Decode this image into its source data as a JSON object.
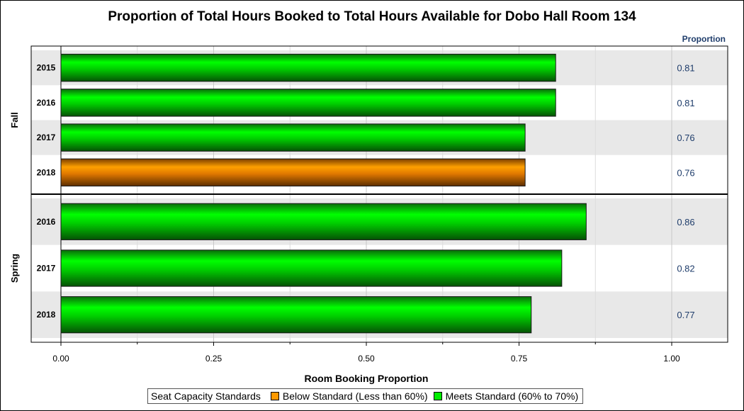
{
  "chart_data": {
    "type": "bar",
    "orientation": "horizontal",
    "title": "Proportion of Total Hours Booked to Total Hours Available for Dobo Hall Room 134",
    "xlabel": "Room Booking Proportion",
    "value_column_header": "Proportion",
    "xlim": [
      0,
      1
    ],
    "xticks": [
      "0.00",
      "0.25",
      "0.50",
      "0.75",
      "1.00"
    ],
    "groups": [
      {
        "name": "Fall",
        "bars": [
          {
            "category": "2015",
            "value": 0.81,
            "label": "0.81",
            "standard": "meets"
          },
          {
            "category": "2016",
            "value": 0.81,
            "label": "0.81",
            "standard": "meets"
          },
          {
            "category": "2017",
            "value": 0.76,
            "label": "0.76",
            "standard": "meets"
          },
          {
            "category": "2018",
            "value": 0.76,
            "label": "0.76",
            "standard": "below"
          }
        ]
      },
      {
        "name": "Spring",
        "bars": [
          {
            "category": "2016",
            "value": 0.86,
            "label": "0.86",
            "standard": "meets"
          },
          {
            "category": "2017",
            "value": 0.82,
            "label": "0.82",
            "standard": "meets"
          },
          {
            "category": "2018",
            "value": 0.77,
            "label": "0.77",
            "standard": "meets"
          }
        ]
      }
    ],
    "legend": {
      "title": "Seat Capacity Standards",
      "position": "bottom",
      "items": [
        {
          "key": "below",
          "label": "Below Standard (Less than 60%)",
          "color": "#ff9900"
        },
        {
          "key": "meets",
          "label": "Meets Standard (60% to 70%)",
          "color": "#00ee00"
        }
      ]
    },
    "grid": true,
    "band_color": "#e8e8e8"
  }
}
